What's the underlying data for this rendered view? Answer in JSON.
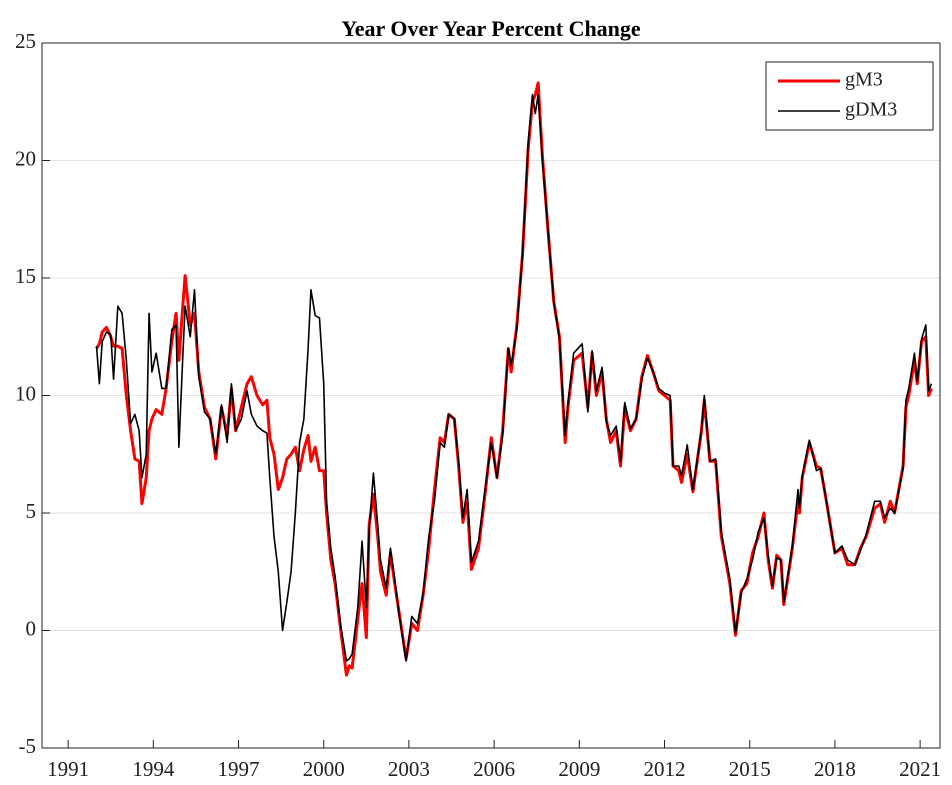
{
  "chart_data": {
    "type": "line",
    "title": "Year Over Year Percent Change",
    "x": [
      1992.0,
      1992.1,
      1992.2,
      1992.35,
      1992.5,
      1992.6,
      1992.75,
      1992.9,
      1993.05,
      1993.2,
      1993.35,
      1993.5,
      1993.6,
      1993.75,
      1993.85,
      1993.95,
      1994.1,
      1994.3,
      1994.45,
      1994.65,
      1994.8,
      1994.9,
      1995.05,
      1995.12,
      1995.3,
      1995.45,
      1995.6,
      1995.8,
      1996.0,
      1996.2,
      1996.4,
      1996.6,
      1996.75,
      1996.9,
      1997.1,
      1997.3,
      1997.45,
      1997.65,
      1997.85,
      1998.0,
      1998.1,
      1998.25,
      1998.4,
      1998.55,
      1998.7,
      1998.85,
      1999.0,
      1999.15,
      1999.3,
      1999.45,
      1999.55,
      1999.7,
      1999.85,
      2000.0,
      2000.1,
      2000.25,
      2000.4,
      2000.6,
      2000.8,
      2000.9,
      2001.0,
      2001.2,
      2001.35,
      2001.5,
      2001.6,
      2001.75,
      2001.9,
      2002.0,
      2002.2,
      2002.35,
      2002.5,
      2002.65,
      2002.9,
      2003.1,
      2003.3,
      2003.5,
      2003.7,
      2003.9,
      2004.1,
      2004.25,
      2004.4,
      2004.6,
      2004.75,
      2004.9,
      2005.05,
      2005.2,
      2005.45,
      2005.7,
      2005.9,
      2006.1,
      2006.3,
      2006.5,
      2006.6,
      2006.8,
      2007.0,
      2007.2,
      2007.35,
      2007.45,
      2007.55,
      2007.7,
      2007.9,
      2008.1,
      2008.3,
      2008.5,
      2008.6,
      2008.8,
      2009.1,
      2009.3,
      2009.45,
      2009.6,
      2009.8,
      2009.95,
      2010.1,
      2010.3,
      2010.45,
      2010.6,
      2010.8,
      2011.0,
      2011.2,
      2011.4,
      2011.6,
      2011.8,
      2012.0,
      2012.2,
      2012.3,
      2012.5,
      2012.6,
      2012.8,
      2013.0,
      2013.3,
      2013.4,
      2013.6,
      2013.8,
      2014.0,
      2014.3,
      2014.5,
      2014.7,
      2014.9,
      2015.1,
      2015.3,
      2015.5,
      2015.65,
      2015.8,
      2015.95,
      2016.1,
      2016.2,
      2016.35,
      2016.5,
      2016.7,
      2016.75,
      2016.85,
      2017.1,
      2017.35,
      2017.5,
      2017.7,
      2018.0,
      2018.25,
      2018.45,
      2018.7,
      2018.9,
      2019.1,
      2019.4,
      2019.6,
      2019.75,
      2019.95,
      2020.1,
      2020.4,
      2020.5,
      2020.6,
      2020.8,
      2020.9,
      2021.05,
      2021.2,
      2021.3,
      2021.4
    ],
    "series": [
      {
        "name": "gM3",
        "color": "#ff0000",
        "values": [
          12.0,
          12.2,
          12.7,
          12.9,
          12.5,
          12.1,
          12.1,
          12.0,
          10.0,
          8.5,
          7.3,
          7.2,
          5.4,
          6.5,
          8.5,
          9.0,
          9.4,
          9.2,
          10.3,
          12.3,
          13.5,
          11.5,
          14.0,
          15.1,
          13.0,
          13.5,
          11.0,
          9.5,
          9.0,
          7.3,
          9.5,
          8.3,
          10.3,
          8.5,
          9.5,
          10.5,
          10.8,
          10.0,
          9.6,
          9.8,
          8.2,
          7.5,
          6.0,
          6.5,
          7.3,
          7.5,
          7.8,
          6.8,
          7.7,
          8.3,
          7.2,
          7.8,
          6.8,
          6.8,
          5.0,
          3.0,
          2.0,
          0.0,
          -1.9,
          -1.5,
          -1.6,
          0.5,
          2.0,
          -0.3,
          4.5,
          5.8,
          4.0,
          2.5,
          1.5,
          3.3,
          2.0,
          0.8,
          -1.2,
          0.3,
          0.0,
          1.5,
          3.5,
          6.0,
          8.2,
          8.0,
          9.2,
          9.0,
          7.0,
          4.6,
          5.5,
          2.6,
          3.5,
          6.0,
          8.2,
          6.5,
          8.5,
          12.0,
          11.0,
          13.0,
          16.0,
          20.5,
          22.5,
          22.8,
          23.3,
          20.2,
          17.0,
          14.0,
          12.5,
          8.0,
          9.5,
          11.5,
          11.8,
          9.5,
          11.8,
          10.0,
          11.0,
          9.0,
          8.0,
          8.5,
          7.0,
          9.5,
          8.5,
          9.0,
          10.8,
          11.7,
          11.0,
          10.2,
          10.0,
          9.8,
          7.0,
          6.8,
          6.3,
          7.5,
          5.9,
          8.5,
          9.8,
          7.2,
          7.2,
          4.0,
          2.0,
          -0.2,
          1.7,
          2.0,
          3.3,
          4.0,
          5.0,
          3.0,
          1.8,
          3.2,
          3.0,
          1.1,
          2.3,
          3.5,
          5.5,
          5.0,
          6.5,
          8.0,
          7.0,
          6.9,
          5.5,
          3.3,
          3.5,
          2.8,
          2.8,
          3.5,
          4.0,
          5.2,
          5.4,
          4.6,
          5.5,
          5.0,
          7.0,
          9.5,
          10.0,
          11.5,
          10.5,
          12.3,
          12.5,
          10.0,
          10.3
        ]
      },
      {
        "name": "gDM3",
        "color": "#000000",
        "values": [
          12.1,
          10.5,
          12.3,
          12.7,
          12.6,
          10.7,
          13.8,
          13.5,
          11.5,
          8.8,
          9.2,
          8.5,
          6.5,
          7.5,
          13.5,
          11.0,
          11.8,
          10.3,
          10.3,
          12.8,
          13.0,
          7.8,
          12.0,
          13.8,
          12.5,
          14.5,
          10.8,
          9.3,
          9.0,
          7.5,
          9.6,
          8.0,
          10.5,
          8.5,
          9.0,
          10.2,
          9.2,
          8.7,
          8.5,
          8.4,
          6.5,
          4.0,
          2.5,
          0.0,
          1.2,
          2.5,
          5.0,
          8.0,
          9.0,
          12.0,
          14.5,
          13.4,
          13.3,
          10.5,
          5.5,
          3.5,
          2.3,
          0.2,
          -1.3,
          -1.2,
          -1.0,
          1.0,
          3.8,
          1.0,
          4.3,
          6.7,
          4.5,
          3.0,
          1.8,
          3.5,
          2.2,
          0.7,
          -1.3,
          0.6,
          0.3,
          1.6,
          4.0,
          5.5,
          8.0,
          7.8,
          9.2,
          9.0,
          7.2,
          4.8,
          6.0,
          2.9,
          3.8,
          6.2,
          8.0,
          6.5,
          8.3,
          12.0,
          11.3,
          12.8,
          16.0,
          20.8,
          22.8,
          22.0,
          22.8,
          20.0,
          17.0,
          14.0,
          12.4,
          8.3,
          9.7,
          11.8,
          12.2,
          9.3,
          11.9,
          10.2,
          11.2,
          8.9,
          8.3,
          8.7,
          7.2,
          9.7,
          8.6,
          9.0,
          10.7,
          11.6,
          11.0,
          10.3,
          10.1,
          10.0,
          7.0,
          7.0,
          6.6,
          7.9,
          6.0,
          8.5,
          10.0,
          7.2,
          7.3,
          4.2,
          2.2,
          -0.1,
          1.6,
          2.2,
          3.0,
          4.2,
          4.8,
          3.2,
          1.9,
          3.1,
          3.0,
          1.2,
          2.4,
          3.6,
          6.0,
          5.2,
          6.6,
          8.1,
          6.8,
          6.9,
          5.5,
          3.3,
          3.6,
          3.0,
          2.8,
          3.4,
          4.1,
          5.5,
          5.5,
          4.8,
          5.2,
          5.0,
          6.9,
          9.8,
          10.3,
          11.8,
          10.6,
          12.4,
          13.0,
          10.2,
          10.5
        ]
      }
    ],
    "xlim": [
      1990.08,
      2021.7
    ],
    "xticks": [
      1991,
      1994,
      1997,
      2000,
      2003,
      2006,
      2009,
      2012,
      2015,
      2018,
      2021
    ],
    "ylim": [
      -5,
      25
    ],
    "yticks": [
      -5,
      0,
      5,
      10,
      15,
      20,
      25
    ],
    "grid": "y",
    "legend": "top-right"
  }
}
